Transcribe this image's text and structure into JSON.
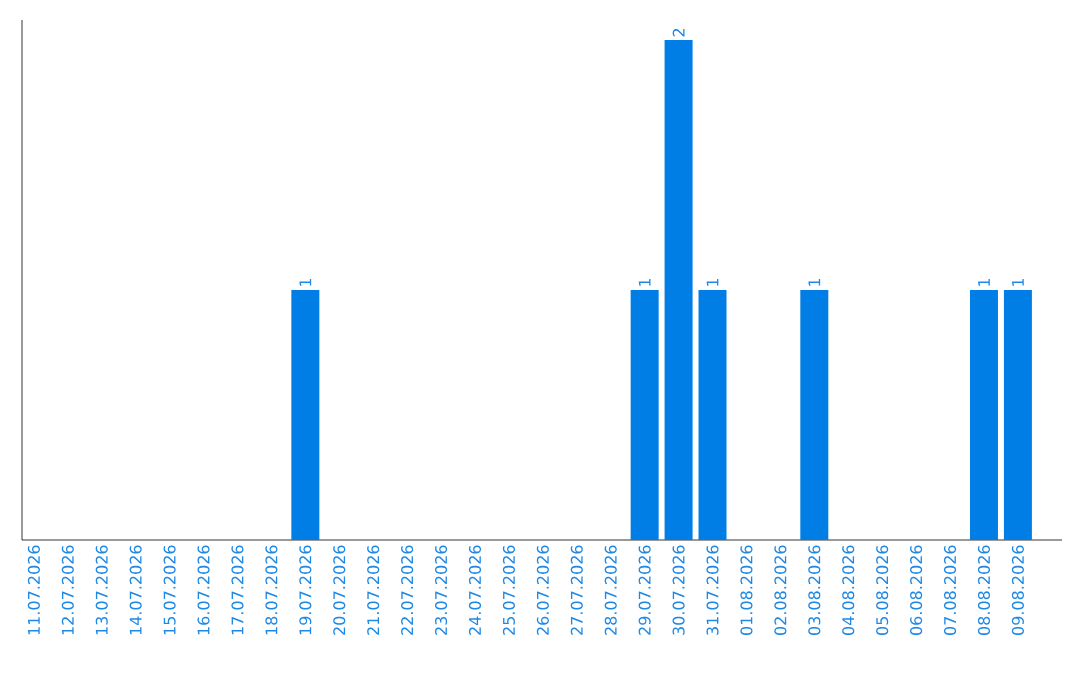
{
  "chart_data": {
    "type": "bar",
    "categories": [
      "11.07.2026",
      "12.07.2026",
      "13.07.2026",
      "14.07.2026",
      "15.07.2026",
      "16.07.2026",
      "17.07.2026",
      "18.07.2026",
      "19.07.2026",
      "20.07.2026",
      "21.07.2026",
      "22.07.2026",
      "23.07.2026",
      "24.07.2026",
      "25.07.2026",
      "26.07.2026",
      "27.07.2026",
      "28.07.2026",
      "29.07.2026",
      "30.07.2026",
      "31.07.2026",
      "01.08.2026",
      "02.08.2026",
      "03.08.2026",
      "04.08.2026",
      "05.08.2026",
      "06.08.2026",
      "07.08.2026",
      "08.08.2026",
      "09.08.2026"
    ],
    "values": [
      0,
      0,
      0,
      0,
      0,
      0,
      0,
      0,
      1,
      0,
      0,
      0,
      0,
      0,
      0,
      0,
      0,
      0,
      1,
      2,
      1,
      0,
      0,
      1,
      0,
      0,
      0,
      0,
      1,
      1
    ],
    "value_labels": [
      null,
      null,
      null,
      null,
      null,
      null,
      null,
      null,
      "1",
      null,
      null,
      null,
      null,
      null,
      null,
      null,
      null,
      null,
      "1",
      "2",
      "1",
      null,
      null,
      "1",
      null,
      null,
      null,
      null,
      "1",
      "1"
    ],
    "color": "#007ee5"
  }
}
